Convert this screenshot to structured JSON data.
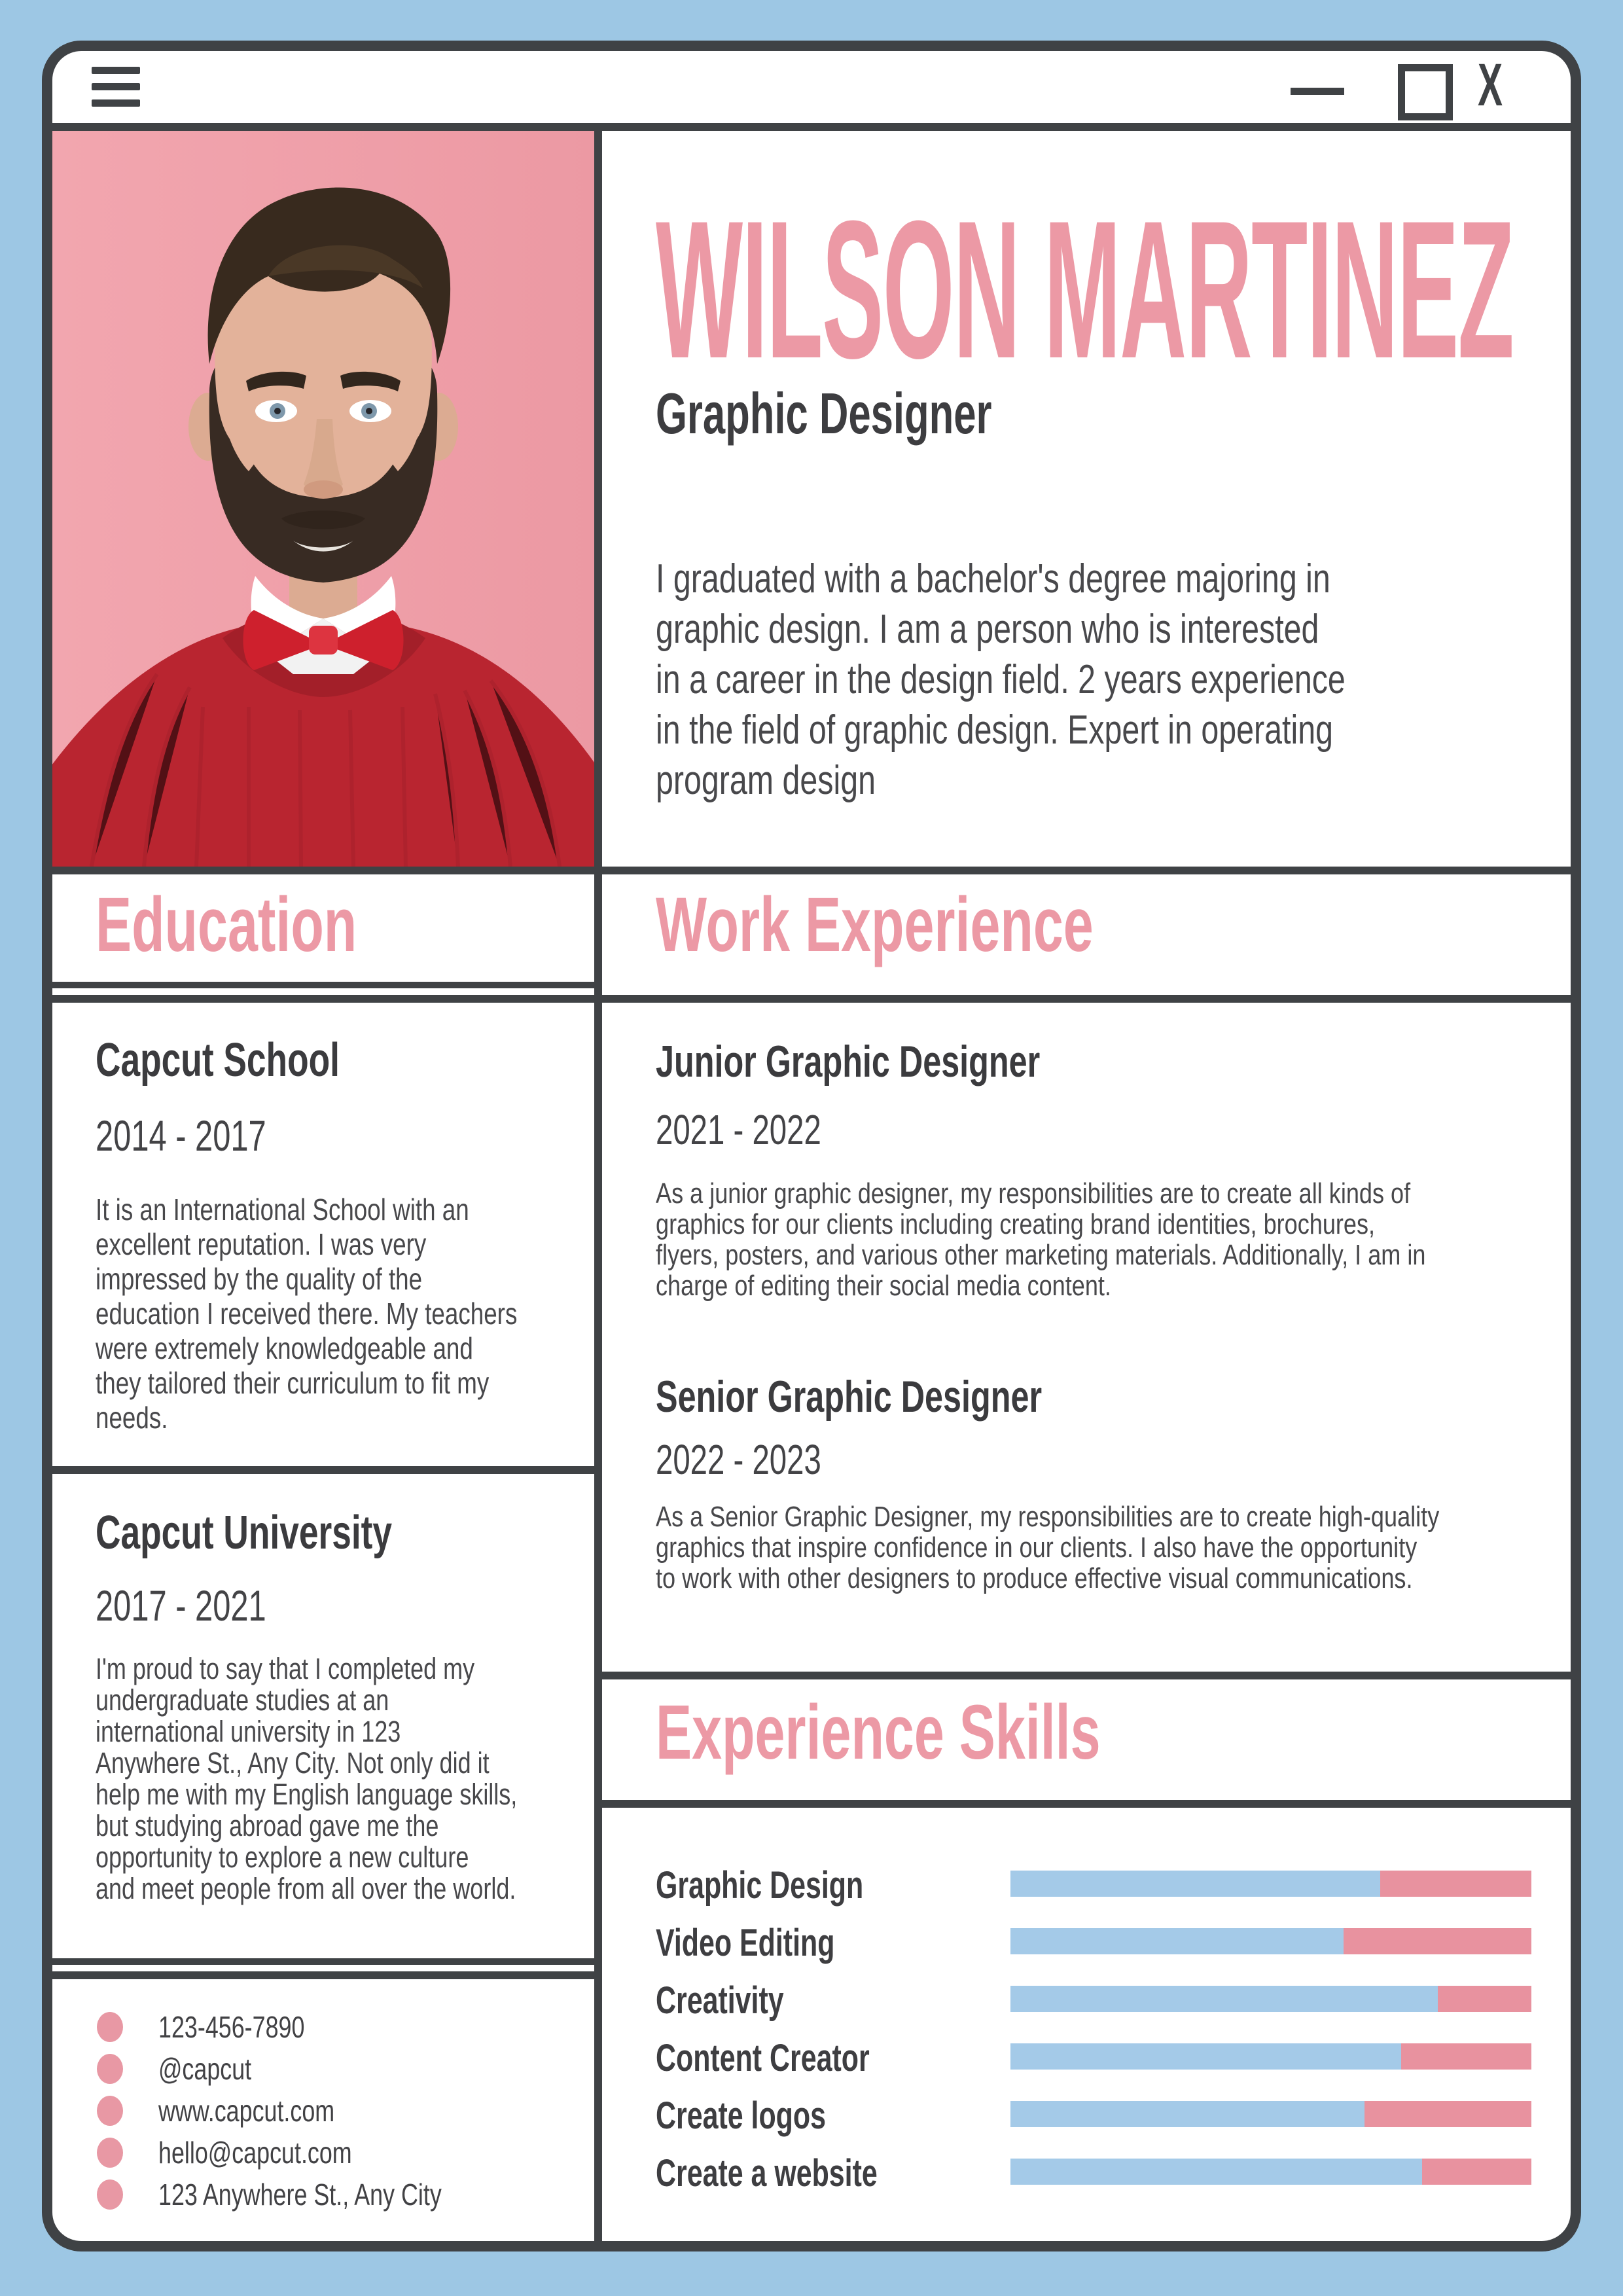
{
  "window_controls": {
    "menu_icon": "hamburger",
    "minimize_icon": "minus",
    "maximize_icon": "square",
    "close_label": "X"
  },
  "profile": {
    "name": "WILSON MARTINEZ",
    "job_title": "Graphic Designer",
    "bio": "I graduated with a bachelor's degree majoring in\ngraphic design. I am a person who is interested\nin a career in the design field. 2 years experience\nin the field of graphic design. Expert in operating\nprogram design",
    "photo_description": "man with dark hair and beard, red sweater, red bow tie, pink background"
  },
  "education": {
    "heading": "Education",
    "schools": [
      {
        "name": "Capcut School",
        "years": "2014 - 2017",
        "description": "It is an International School with an\nexcellent reputation. I was very\nimpressed by the quality of the\neducation I received there. My teachers\nwere extremely knowledgeable and\nthey tailored their curriculum to fit my\nneeds."
      },
      {
        "name": "Capcut University",
        "years": "2017 - 2021",
        "description": "I'm proud to say that I completed my\nundergraduate studies at an\ninternational university in 123\nAnywhere St., Any City. Not only did it\nhelp me with my English language skills,\nbut studying abroad gave me the\nopportunity to explore a new culture\nand meet people from all over the world."
      }
    ]
  },
  "work": {
    "heading": "Work Experience",
    "jobs": [
      {
        "title": "Junior Graphic Designer",
        "years": "2021 - 2022",
        "description": "As a junior graphic designer, my responsibilities are to create all kinds of\ngraphics for our clients including creating brand identities, brochures,\nflyers, posters, and various other marketing materials. Additionally, I am in\ncharge of editing their social media content."
      },
      {
        "title": "Senior Graphic Designer",
        "years": "2022 - 2023",
        "description": "As a Senior Graphic Designer, my responsibilities are to create high-quality\ngraphics that inspire confidence in our clients. I also have the opportunity\nto work with other designers to produce effective visual communications."
      }
    ]
  },
  "skills": {
    "heading": "Experience Skills",
    "items": [
      {
        "label": "Graphic Design",
        "level_pct": 71
      },
      {
        "label": "Video Editing",
        "level_pct": 64
      },
      {
        "label": "Creativity",
        "level_pct": 82
      },
      {
        "label": "Content Creator",
        "level_pct": 75
      },
      {
        "label": "Create logos",
        "level_pct": 68
      },
      {
        "label": "Create a website",
        "level_pct": 79
      }
    ]
  },
  "contact": {
    "items": [
      {
        "text": "123-456-7890"
      },
      {
        "text": "@capcut"
      },
      {
        "text": "www.capcut.com"
      },
      {
        "text": "hello@capcut.com"
      },
      {
        "text": "123 Anywhere St., Any City"
      }
    ]
  },
  "colors": {
    "page_background": "#9dc7e4",
    "frame": "#3f4245",
    "accent_pink": "#ec99a5",
    "bar_blue": "#a4cae8",
    "bar_pink": "#e8929f",
    "photo_background": "#f2a4ad"
  }
}
